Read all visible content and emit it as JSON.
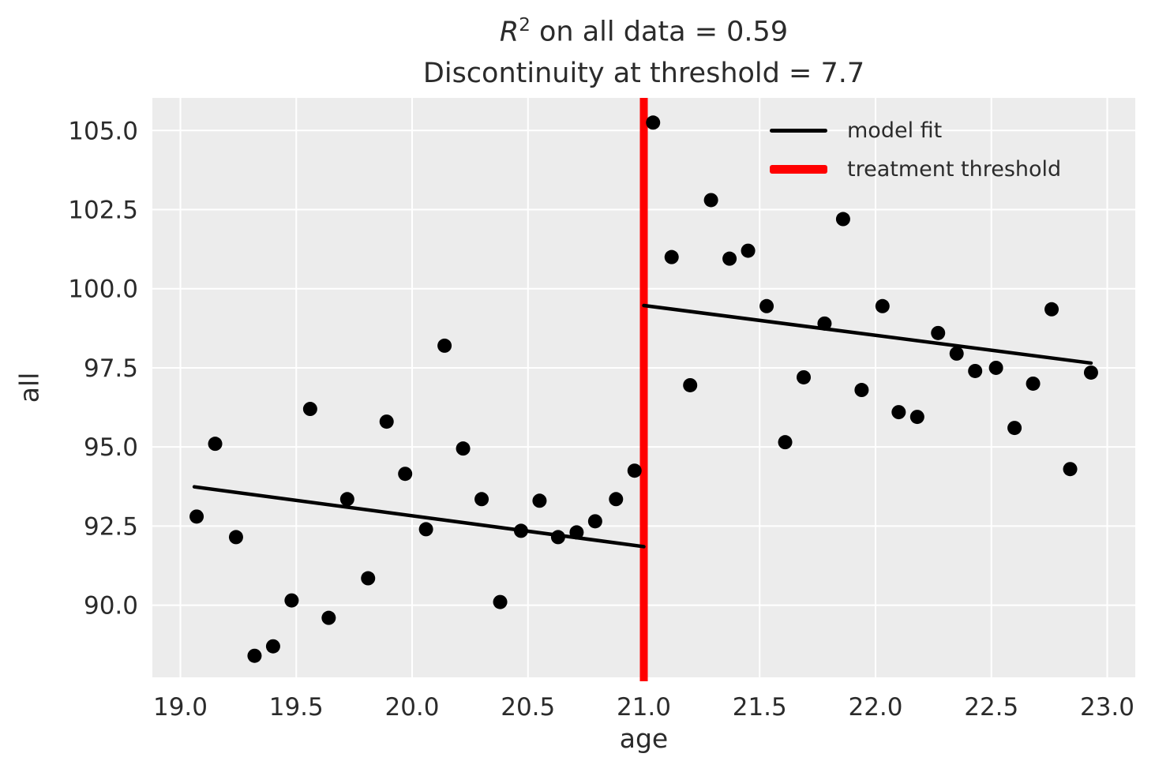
{
  "title": {
    "r_symbol": "R",
    "exponent": "2",
    "line1_rest": " on all data = 0.59",
    "line2": "Discontinuity at threshold = 7.7"
  },
  "colors": {
    "figure_bg": "#ffffff",
    "plot_bg": "#ececec",
    "grid": "#ffffff",
    "point": "#000000",
    "fit_line": "#000000",
    "threshold": "#ff0000",
    "text": "#2b2b2b"
  },
  "chart_data": {
    "type": "scatter",
    "title": "R^2 on all data = 0.59\nDiscontinuity at threshold = 7.7",
    "xlabel": "age",
    "ylabel": "all",
    "xlim": [
      18.879,
      23.121
    ],
    "ylim": [
      87.72,
      106.03
    ],
    "grid": true,
    "legend_position": "upper right",
    "x_ticks": [
      {
        "v": 19.0,
        "label": "19.0"
      },
      {
        "v": 19.5,
        "label": "19.5"
      },
      {
        "v": 20.0,
        "label": "20.0"
      },
      {
        "v": 20.5,
        "label": "20.5"
      },
      {
        "v": 21.0,
        "label": "21.0"
      },
      {
        "v": 21.5,
        "label": "21.5"
      },
      {
        "v": 22.0,
        "label": "22.0"
      },
      {
        "v": 22.5,
        "label": "22.5"
      },
      {
        "v": 23.0,
        "label": "23.0"
      }
    ],
    "y_ticks": [
      {
        "v": 105.0,
        "label": "105.0"
      },
      {
        "v": 102.5,
        "label": "102.5"
      },
      {
        "v": 100.0,
        "label": "100.0"
      },
      {
        "v": 97.5,
        "label": "97.5"
      },
      {
        "v": 95.0,
        "label": "95.0"
      },
      {
        "v": 92.5,
        "label": "92.5"
      },
      {
        "v": 90.0,
        "label": "90.0"
      }
    ],
    "points": [
      [
        19.07,
        92.8
      ],
      [
        19.15,
        95.1
      ],
      [
        19.24,
        92.15
      ],
      [
        19.32,
        88.4
      ],
      [
        19.4,
        88.7
      ],
      [
        19.48,
        90.15
      ],
      [
        19.56,
        96.2
      ],
      [
        19.64,
        89.6
      ],
      [
        19.72,
        93.35
      ],
      [
        19.81,
        90.85
      ],
      [
        19.89,
        95.8
      ],
      [
        19.97,
        94.15
      ],
      [
        20.06,
        92.4
      ],
      [
        20.14,
        98.2
      ],
      [
        20.22,
        94.95
      ],
      [
        20.3,
        93.35
      ],
      [
        20.38,
        90.1
      ],
      [
        20.47,
        92.35
      ],
      [
        20.55,
        93.3
      ],
      [
        20.63,
        92.15
      ],
      [
        20.71,
        92.3
      ],
      [
        20.79,
        92.65
      ],
      [
        20.88,
        93.35
      ],
      [
        20.96,
        94.25
      ],
      [
        21.04,
        105.25
      ],
      [
        21.12,
        101.0
      ],
      [
        21.2,
        96.95
      ],
      [
        21.29,
        102.8
      ],
      [
        21.37,
        100.95
      ],
      [
        21.45,
        101.2
      ],
      [
        21.53,
        99.45
      ],
      [
        21.61,
        95.15
      ],
      [
        21.69,
        97.2
      ],
      [
        21.78,
        98.9
      ],
      [
        21.86,
        102.2
      ],
      [
        21.94,
        96.8
      ],
      [
        22.03,
        99.45
      ],
      [
        22.1,
        96.1
      ],
      [
        22.18,
        95.95
      ],
      [
        22.27,
        98.6
      ],
      [
        22.35,
        97.95
      ],
      [
        22.43,
        97.4
      ],
      [
        22.52,
        97.5
      ],
      [
        22.6,
        95.6
      ],
      [
        22.68,
        97.0
      ],
      [
        22.76,
        99.35
      ],
      [
        22.84,
        94.3
      ],
      [
        22.93,
        97.35
      ]
    ],
    "fit_segments": [
      {
        "x1": 19.06,
        "y1": 93.74,
        "x2": 21.0,
        "y2": 91.85
      },
      {
        "x1": 21.0,
        "y1": 99.47,
        "x2": 22.93,
        "y2": 97.65
      }
    ],
    "threshold_x": 21.0,
    "legend": [
      {
        "label": "model fit",
        "color": "#000000",
        "line_width": 5
      },
      {
        "label": "treatment threshold",
        "color": "#ff0000",
        "line_width": 11
      }
    ]
  }
}
